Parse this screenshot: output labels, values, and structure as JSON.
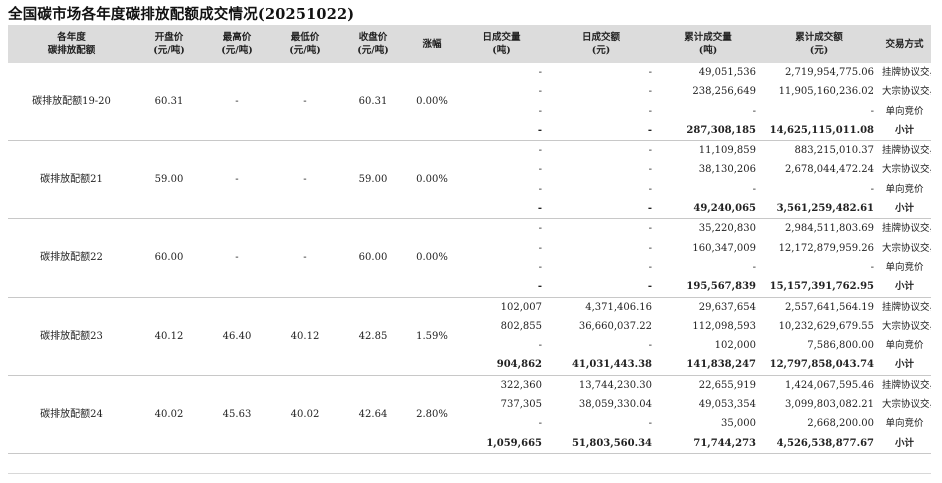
{
  "title": "全国碳市场各年度碳排放配额成交情况(20251022)",
  "headers": [
    [
      "各年度",
      "碳排放配额"
    ],
    [
      "开盘价",
      "(元/吨)"
    ],
    [
      "最高价",
      "(元/吨)"
    ],
    [
      "最低价",
      "(元/吨)"
    ],
    [
      "收盘价",
      "(元/吨)"
    ],
    [
      "涨幅"
    ],
    [
      "日成交量",
      "(吨)"
    ],
    [
      "日成交额",
      "(元)"
    ],
    [
      "累计成交量",
      "(吨)"
    ],
    [
      "累计成交额",
      "(元)"
    ],
    [
      "交易方式"
    ]
  ],
  "groups": [
    {
      "name": "碳排放配额19-20",
      "open": "60.31",
      "high": "-",
      "low": "-",
      "close": "60.31",
      "change": "0.00%",
      "rows": [
        {
          "dv": "-",
          "da": "-",
          "cv": "49,051,536",
          "ca": "2,719,954,775.06",
          "type": "挂牌协议交易"
        },
        {
          "dv": "-",
          "da": "-",
          "cv": "238,256,649",
          "ca": "11,905,160,236.02",
          "type": "大宗协议交易"
        },
        {
          "dv": "-",
          "da": "-",
          "cv": "-",
          "ca": "-",
          "type": "单向竞价"
        },
        {
          "dv": "-",
          "da": "-",
          "cv": "287,308,185",
          "ca": "14,625,115,011.08",
          "type": "小计"
        }
      ]
    },
    {
      "name": "碳排放配额21",
      "open": "59.00",
      "high": "-",
      "low": "-",
      "close": "59.00",
      "change": "0.00%",
      "rows": [
        {
          "dv": "-",
          "da": "-",
          "cv": "11,109,859",
          "ca": "883,215,010.37",
          "type": "挂牌协议交易"
        },
        {
          "dv": "-",
          "da": "-",
          "cv": "38,130,206",
          "ca": "2,678,044,472.24",
          "type": "大宗协议交易"
        },
        {
          "dv": "-",
          "da": "-",
          "cv": "-",
          "ca": "-",
          "type": "单向竞价"
        },
        {
          "dv": "-",
          "da": "-",
          "cv": "49,240,065",
          "ca": "3,561,259,482.61",
          "type": "小计"
        }
      ]
    },
    {
      "name": "碳排放配额22",
      "open": "60.00",
      "high": "-",
      "low": "-",
      "close": "60.00",
      "change": "0.00%",
      "rows": [
        {
          "dv": "-",
          "da": "-",
          "cv": "35,220,830",
          "ca": "2,984,511,803.69",
          "type": "挂牌协议交易"
        },
        {
          "dv": "-",
          "da": "-",
          "cv": "160,347,009",
          "ca": "12,172,879,959.26",
          "type": "大宗协议交易"
        },
        {
          "dv": "-",
          "da": "-",
          "cv": "-",
          "ca": "-",
          "type": "单向竞价"
        },
        {
          "dv": "-",
          "da": "-",
          "cv": "195,567,839",
          "ca": "15,157,391,762.95",
          "type": "小计"
        }
      ]
    },
    {
      "name": "碳排放配额23",
      "open": "40.12",
      "high": "46.40",
      "low": "40.12",
      "close": "42.85",
      "change": "1.59%",
      "rows": [
        {
          "dv": "102,007",
          "da": "4,371,406.16",
          "cv": "29,637,654",
          "ca": "2,557,641,564.19",
          "type": "挂牌协议交易"
        },
        {
          "dv": "802,855",
          "da": "36,660,037.22",
          "cv": "112,098,593",
          "ca": "10,232,629,679.55",
          "type": "大宗协议交易"
        },
        {
          "dv": "-",
          "da": "-",
          "cv": "102,000",
          "ca": "7,586,800.00",
          "type": "单向竞价"
        },
        {
          "dv": "904,862",
          "da": "41,031,443.38",
          "cv": "141,838,247",
          "ca": "12,797,858,043.74",
          "type": "小计"
        }
      ]
    },
    {
      "name": "碳排放配额24",
      "open": "40.02",
      "high": "45.63",
      "low": "40.02",
      "close": "42.64",
      "change": "2.80%",
      "rows": [
        {
          "dv": "322,360",
          "da": "13,744,230.30",
          "cv": "22,655,919",
          "ca": "1,424,067,595.46",
          "type": "挂牌协议交易"
        },
        {
          "dv": "737,305",
          "da": "38,059,330.04",
          "cv": "49,053,354",
          "ca": "3,099,803,082.21",
          "type": "大宗协议交易"
        },
        {
          "dv": "-",
          "da": "-",
          "cv": "35,000",
          "ca": "2,668,200.00",
          "type": "单向竞价"
        },
        {
          "dv": "1,059,665",
          "da": "51,803,560.34",
          "cv": "71,744,273",
          "ca": "4,526,538,877.67",
          "type": "小计"
        }
      ]
    }
  ]
}
